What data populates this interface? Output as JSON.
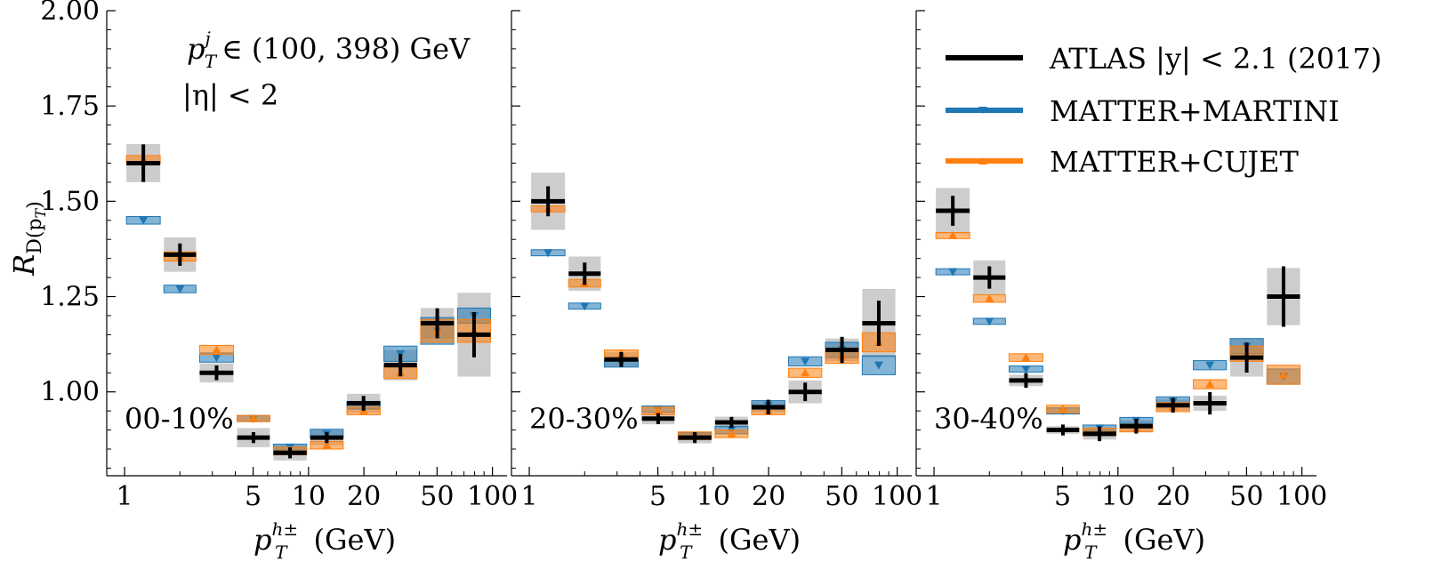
{
  "figure": {
    "ylabel_main": "R",
    "ylabel_sub": "D(p",
    "ylabel_subsub": "T",
    "ylabel_close": ")",
    "xlabel": {
      "p": "p",
      "sup": "h±",
      "sub": "T",
      "unit": "(GeV)"
    },
    "annotation": {
      "line1_p": "p",
      "line1_sup": "j",
      "line1_sub": "T",
      "line1_rest": "∈ (100, 398) GeV",
      "line2": "|η| < 2"
    }
  },
  "colors": {
    "atlas": "#000000",
    "atlas_band": "#c8c8c8",
    "martini": "#1f77b4",
    "cujet": "#ff7f0e"
  },
  "legend": [
    {
      "key": "atlas",
      "label": "ATLAS |y| < 2.1 (2017)"
    },
    {
      "key": "martini",
      "label": "MATTER+MARTINI"
    },
    {
      "key": "cujet",
      "label": "MATTER+CUJET"
    }
  ],
  "chart_data": [
    {
      "type": "errorbar",
      "panel_label": "00-10%",
      "xscale": "log",
      "xlim": [
        0.8,
        120
      ],
      "ylim": [
        0.78,
        2.0
      ],
      "yticks": [
        1.0,
        1.25,
        1.5,
        1.75,
        2.0
      ],
      "yticklabels": [
        "1.00",
        "1.25",
        "1.50",
        "1.75",
        "2.00"
      ],
      "xticks": [
        1,
        5,
        10,
        20,
        50,
        100
      ],
      "xticklabels": [
        "1",
        "5",
        "10",
        "20",
        "50",
        "100"
      ],
      "xlabel": "p_T^{h±} (GeV)",
      "ylabel": "R_{D(p_T)}",
      "series": [
        {
          "name": "ATLAS |y| < 2.1 (2017)",
          "key": "atlas",
          "bins": [
            [
              1.0,
              1.6
            ],
            [
              1.6,
              2.5
            ],
            [
              2.5,
              4.0
            ],
            [
              4.0,
              6.3
            ],
            [
              6.3,
              10.0
            ],
            [
              10.0,
              15.8
            ],
            [
              15.8,
              25.1
            ],
            [
              25.1,
              39.8
            ],
            [
              39.8,
              63.1
            ],
            [
              63.1,
              100.0
            ]
          ],
          "y": [
            1.6,
            1.36,
            1.05,
            0.88,
            0.84,
            0.88,
            0.97,
            1.07,
            1.18,
            1.15
          ],
          "stat": [
            0.04,
            0.02,
            0.01,
            0.005,
            0.005,
            0.005,
            0.01,
            0.02,
            0.03,
            0.05
          ],
          "sys": [
            0.05,
            0.045,
            0.025,
            0.025,
            0.02,
            0.02,
            0.025,
            0.04,
            0.04,
            0.11
          ]
        },
        {
          "name": "MATTER+MARTINI",
          "key": "martini",
          "bins": [
            [
              1.0,
              1.6
            ],
            [
              1.6,
              2.5
            ],
            [
              2.5,
              4.0
            ],
            [
              4.0,
              6.3
            ],
            [
              6.3,
              10.0
            ],
            [
              10.0,
              15.8
            ],
            [
              15.8,
              25.1
            ],
            [
              25.1,
              39.8
            ],
            [
              39.8,
              63.1
            ],
            [
              63.1,
              100.0
            ]
          ],
          "y": [
            1.45,
            1.27,
            1.09,
            0.93,
            0.855,
            0.89,
            0.965,
            1.1,
            1.16,
            1.2
          ],
          "err": [
            0.01,
            0.01,
            0.012,
            0.008,
            0.008,
            0.012,
            0.01,
            0.02,
            0.035,
            0.02
          ]
        },
        {
          "name": "MATTER+CUJET",
          "key": "cujet",
          "bins": [
            [
              1.0,
              1.6
            ],
            [
              1.6,
              2.5
            ],
            [
              2.5,
              4.0
            ],
            [
              4.0,
              6.3
            ],
            [
              6.3,
              10.0
            ],
            [
              10.0,
              15.8
            ],
            [
              15.8,
              25.1
            ],
            [
              25.1,
              39.8
            ],
            [
              39.8,
              63.1
            ],
            [
              63.1,
              100.0
            ]
          ],
          "y": [
            1.61,
            1.355,
            1.11,
            0.93,
            0.845,
            0.86,
            0.95,
            1.05,
            1.16,
            1.16
          ],
          "err": [
            0.01,
            0.012,
            0.012,
            0.008,
            0.01,
            0.01,
            0.01,
            0.015,
            0.03,
            0.03
          ]
        }
      ]
    },
    {
      "type": "errorbar",
      "panel_label": "20-30%",
      "xscale": "log",
      "xlim": [
        0.8,
        120
      ],
      "ylim": [
        0.78,
        2.0
      ],
      "xticks": [
        1,
        5,
        10,
        20,
        50,
        100
      ],
      "xticklabels": [
        "1",
        "5",
        "10",
        "20",
        "50",
        "100"
      ],
      "xlabel": "p_T^{h±} (GeV)",
      "series": [
        {
          "name": "ATLAS |y| < 2.1 (2017)",
          "key": "atlas",
          "bins": [
            [
              1.0,
              1.6
            ],
            [
              1.6,
              2.5
            ],
            [
              2.5,
              4.0
            ],
            [
              4.0,
              6.3
            ],
            [
              6.3,
              10.0
            ],
            [
              10.0,
              15.8
            ],
            [
              15.8,
              25.1
            ],
            [
              25.1,
              39.8
            ],
            [
              39.8,
              63.1
            ],
            [
              63.1,
              100.0
            ]
          ],
          "y": [
            1.5,
            1.31,
            1.085,
            0.93,
            0.88,
            0.92,
            0.96,
            1.0,
            1.11,
            1.18
          ],
          "stat": [
            0.03,
            0.02,
            0.01,
            0.005,
            0.005,
            0.005,
            0.01,
            0.015,
            0.025,
            0.05
          ],
          "sys": [
            0.075,
            0.045,
            0.02,
            0.015,
            0.015,
            0.015,
            0.015,
            0.03,
            0.03,
            0.09
          ]
        },
        {
          "name": "MATTER+MARTINI",
          "key": "martini",
          "bins": [
            [
              1.0,
              1.6
            ],
            [
              1.6,
              2.5
            ],
            [
              2.5,
              4.0
            ],
            [
              4.0,
              6.3
            ],
            [
              6.3,
              10.0
            ],
            [
              10.0,
              15.8
            ],
            [
              15.8,
              25.1
            ],
            [
              25.1,
              39.8
            ],
            [
              39.8,
              63.1
            ],
            [
              63.1,
              100.0
            ]
          ],
          "y": [
            1.365,
            1.225,
            1.075,
            0.955,
            0.885,
            0.9,
            0.965,
            1.08,
            1.11,
            1.07
          ],
          "err": [
            0.008,
            0.008,
            0.01,
            0.008,
            0.008,
            0.01,
            0.012,
            0.012,
            0.02,
            0.025
          ]
        },
        {
          "name": "MATTER+CUJET",
          "key": "cujet",
          "bins": [
            [
              1.0,
              1.6
            ],
            [
              1.6,
              2.5
            ],
            [
              2.5,
              4.0
            ],
            [
              4.0,
              6.3
            ],
            [
              6.3,
              10.0
            ],
            [
              10.0,
              15.8
            ],
            [
              15.8,
              25.1
            ],
            [
              25.1,
              39.8
            ],
            [
              39.8,
              63.1
            ],
            [
              63.1,
              100.0
            ]
          ],
          "y": [
            1.48,
            1.285,
            1.1,
            0.95,
            0.885,
            0.89,
            0.95,
            1.05,
            1.095,
            1.13
          ],
          "err": [
            0.008,
            0.01,
            0.01,
            0.01,
            0.01,
            0.01,
            0.01,
            0.012,
            0.02,
            0.025
          ]
        }
      ]
    },
    {
      "type": "errorbar",
      "panel_label": "30-40%",
      "xscale": "log",
      "xlim": [
        0.8,
        120
      ],
      "ylim": [
        0.78,
        2.0
      ],
      "xticks": [
        1,
        5,
        10,
        20,
        50,
        100
      ],
      "xticklabels": [
        "1",
        "5",
        "10",
        "20",
        "50",
        "100"
      ],
      "xlabel": "p_T^{h±} (GeV)",
      "series": [
        {
          "name": "ATLAS |y| < 2.1 (2017)",
          "key": "atlas",
          "bins": [
            [
              1.0,
              1.6
            ],
            [
              1.6,
              2.5
            ],
            [
              2.5,
              4.0
            ],
            [
              4.0,
              6.3
            ],
            [
              6.3,
              10.0
            ],
            [
              10.0,
              15.8
            ],
            [
              15.8,
              25.1
            ],
            [
              25.1,
              39.8
            ],
            [
              39.8,
              63.1
            ],
            [
              63.1,
              100.0
            ]
          ],
          "y": [
            1.475,
            1.3,
            1.03,
            0.9,
            0.89,
            0.91,
            0.965,
            0.97,
            1.09,
            1.25
          ],
          "stat": [
            0.03,
            0.02,
            0.01,
            0.005,
            0.01,
            0.01,
            0.01,
            0.02,
            0.03,
            0.07
          ],
          "sys": [
            0.06,
            0.045,
            0.015,
            0.01,
            0.015,
            0.015,
            0.015,
            0.02,
            0.05,
            0.075
          ]
        },
        {
          "name": "MATTER+MARTINI",
          "key": "martini",
          "bins": [
            [
              1.0,
              1.6
            ],
            [
              1.6,
              2.5
            ],
            [
              2.5,
              4.0
            ],
            [
              4.0,
              6.3
            ],
            [
              6.3,
              10.0
            ],
            [
              10.0,
              15.8
            ],
            [
              15.8,
              25.1
            ],
            [
              25.1,
              39.8
            ],
            [
              39.8,
              63.1
            ],
            [
              63.1,
              100.0
            ]
          ],
          "y": [
            1.315,
            1.185,
            1.06,
            0.95,
            0.905,
            0.925,
            0.975,
            1.07,
            1.12,
            1.04
          ],
          "err": [
            0.008,
            0.008,
            0.008,
            0.008,
            0.008,
            0.008,
            0.012,
            0.012,
            0.02,
            0.02
          ]
        },
        {
          "name": "MATTER+CUJET",
          "key": "cujet",
          "bins": [
            [
              1.0,
              1.6
            ],
            [
              1.6,
              2.5
            ],
            [
              2.5,
              4.0
            ],
            [
              4.0,
              6.3
            ],
            [
              6.3,
              10.0
            ],
            [
              10.0,
              15.8
            ],
            [
              15.8,
              25.1
            ],
            [
              25.1,
              39.8
            ],
            [
              39.8,
              63.1
            ],
            [
              63.1,
              100.0
            ]
          ],
          "y": [
            1.41,
            1.245,
            1.09,
            0.955,
            0.895,
            0.905,
            0.96,
            1.02,
            1.1,
            1.045
          ],
          "err": [
            0.008,
            0.01,
            0.01,
            0.01,
            0.01,
            0.01,
            0.012,
            0.012,
            0.02,
            0.025
          ]
        }
      ]
    }
  ]
}
